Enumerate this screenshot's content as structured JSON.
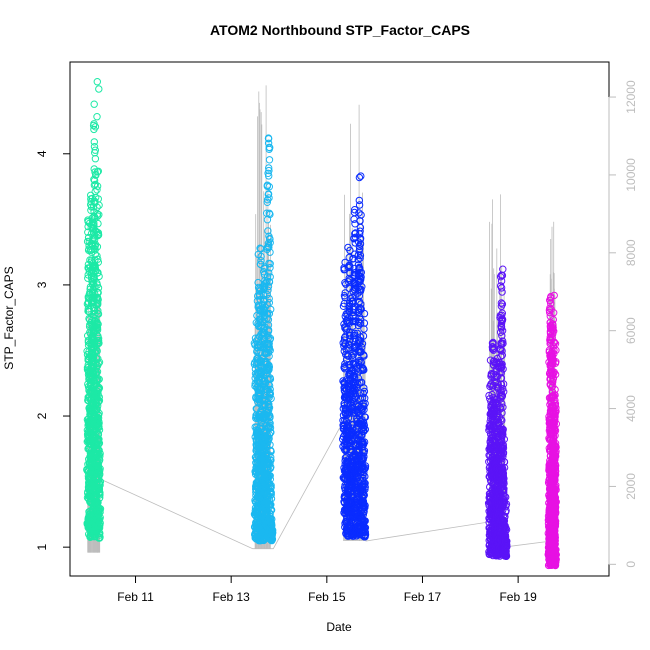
{
  "chart_data": {
    "type": "scatter",
    "title": "ATOM2 Northbound STP_Factor_CAPS",
    "xlabel": "Date",
    "ylabel": "STP_Factor_CAPS",
    "x_ticks": [
      "Feb 11",
      "Feb 13",
      "Feb 15",
      "Feb 17",
      "Feb 19"
    ],
    "x_tick_days": [
      11,
      13,
      15,
      17,
      19
    ],
    "xlim_days": [
      9.63,
      20.9
    ],
    "y_ticks": [
      "1",
      "2",
      "3",
      "4"
    ],
    "ylim": [
      0.78,
      4.7
    ],
    "y2_ticks": [
      "0",
      "2000",
      "4000",
      "6000",
      "8000",
      "10000",
      "12000"
    ],
    "y2lim": [
      -300,
      12900
    ],
    "colors": {
      "series_1": "#1de9a6",
      "series_2": "#1bb8f0",
      "series_3": "#0a2cff",
      "series_4": "#5b14f7",
      "series_5": "#e711e3",
      "volume": "#bdbdbd"
    },
    "series": [
      {
        "color_key": "series_1",
        "day_start": 10.0,
        "day_end": 10.25,
        "y_min": 1.07,
        "y_max": 4.55,
        "y_profile": [
          1.5,
          3.5,
          3.45,
          2.6,
          2.0,
          2.7,
          3.9,
          3.3,
          2.2,
          3.0,
          3.7,
          4.4,
          3.8,
          2.5,
          1.6,
          2.9,
          4.55,
          3.2,
          2.0,
          1.4
        ]
      },
      {
        "color_key": "series_2",
        "day_start": 13.5,
        "day_end": 13.85,
        "y_min": 1.05,
        "y_max": 4.12,
        "y_profile": [
          2.95,
          1.2,
          2.4,
          3.25,
          1.6,
          2.8,
          3.3,
          2.2,
          1.5,
          2.9,
          3.0,
          3.2,
          2.0,
          1.3,
          3.5,
          3.85,
          4.12,
          2.4,
          1.2,
          1.1
        ]
      },
      {
        "color_key": "series_3",
        "day_start": 15.35,
        "day_end": 15.8,
        "y_min": 1.08,
        "y_max": 3.83,
        "y_profile": [
          2.0,
          3.2,
          2.7,
          1.6,
          3.0,
          3.4,
          2.5,
          1.3,
          2.8,
          3.6,
          3.3,
          2.1,
          1.5,
          2.9,
          3.83,
          3.5,
          2.6,
          1.7,
          2.9,
          1.2
        ]
      },
      {
        "color_key": "series_4",
        "day_start": 18.4,
        "day_end": 18.75,
        "y_min": 0.93,
        "y_max": 3.12,
        "y_profile": [
          1.6,
          2.55,
          2.2,
          1.3,
          2.5,
          2.6,
          1.8,
          1.2,
          2.3,
          2.45,
          1.7,
          1.1,
          2.2,
          2.9,
          3.12,
          2.5,
          1.8,
          1.1,
          0.95,
          1.4
        ]
      },
      {
        "color_key": "series_5",
        "day_start": 19.65,
        "day_end": 19.78,
        "y_min": 0.86,
        "y_max": 2.92,
        "y_profile": [
          1.1,
          1.6,
          2.3,
          2.92,
          2.7,
          2.2,
          1.6,
          1.2,
          0.9,
          1.5,
          2.5,
          2.85,
          2.4,
          1.9,
          1.3,
          1.0,
          1.4,
          2.1,
          2.6,
          1.2
        ]
      }
    ],
    "volume": {
      "color_key": "volume",
      "connector_path": [
        {
          "day": 10.2,
          "value": 300
        },
        {
          "day": 10.25,
          "value": 2200
        },
        {
          "day": 13.45,
          "value": 400
        },
        {
          "day": 13.88,
          "value": 400
        },
        {
          "day": 15.4,
          "value": 3800
        },
        {
          "day": 15.82,
          "value": 600
        },
        {
          "day": 18.45,
          "value": 1100
        },
        {
          "day": 18.75,
          "value": 450
        },
        {
          "day": 19.7,
          "value": 600
        }
      ],
      "spikes": [
        {
          "day_start": 10.0,
          "day_end": 10.25,
          "low": 300,
          "high": 7200
        },
        {
          "day_start": 13.5,
          "day_end": 13.82,
          "low": 400,
          "high": 12300
        },
        {
          "day_start": 15.35,
          "day_end": 15.8,
          "low": 600,
          "high": 11800
        },
        {
          "day_start": 18.4,
          "day_end": 18.72,
          "low": 650,
          "high": 9500
        },
        {
          "day_start": 19.65,
          "day_end": 19.78,
          "low": 500,
          "high": 8800
        }
      ]
    }
  }
}
